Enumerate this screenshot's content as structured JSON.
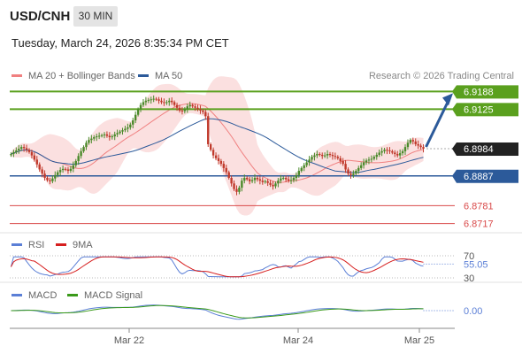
{
  "header": {
    "symbol": "USD/CNH",
    "timeframe": "30 MIN",
    "datetime": "Tuesday, March 24, 2026 8:35:34 PM CET"
  },
  "legend_main": [
    {
      "label": "MA 20 + Bollinger Bands",
      "color": "#f08080"
    },
    {
      "label": "MA 50",
      "color": "#2c5a9a"
    }
  ],
  "credit": "Research © 2026 Trading Central",
  "legend_rsi": [
    {
      "label": "RSI",
      "color": "#5b7fd6"
    },
    {
      "label": "9MA",
      "color": "#d61f1f"
    }
  ],
  "legend_macd": [
    {
      "label": "MACD",
      "color": "#5b7fd6"
    },
    {
      "label": "MACD Signal",
      "color": "#3a9a1a"
    }
  ],
  "colors": {
    "up_candle": "#4a8a2a",
    "down_candle": "#c0392b",
    "resistance": "#5aa01e",
    "support": "#2c5a9a",
    "weak_support": "#d94a4a",
    "band_fill": "#fbe0e0",
    "arrow": "#2c5a9a"
  },
  "chart_data": [
    {
      "type": "candlestick",
      "title": "USD/CNH 30 MIN",
      "x_ticks": [
        "Mar 22",
        "Mar 24",
        "Mar 25"
      ],
      "ylim": [
        6.87,
        6.9205
      ],
      "last_price": 6.8984,
      "levels": [
        {
          "value": 6.9188,
          "label": "6.9188",
          "kind": "resistance"
        },
        {
          "value": 6.9125,
          "label": "6.9125",
          "kind": "resistance"
        },
        {
          "value": 6.8887,
          "label": "6.8887",
          "kind": "support"
        },
        {
          "value": 6.8781,
          "label": "6.8781",
          "kind": "weak_support"
        },
        {
          "value": 6.8717,
          "label": "6.8717",
          "kind": "weak_support"
        }
      ],
      "last_label": "6.8984",
      "close": [
        6.8965,
        6.8972,
        6.8978,
        6.8984,
        6.899,
        6.8986,
        6.898,
        6.8972,
        6.896,
        6.8945,
        6.8928,
        6.891,
        6.8895,
        6.888,
        6.8872,
        6.8868,
        6.8878,
        6.889,
        6.89,
        6.8908,
        6.8912,
        6.891,
        6.8905,
        6.8912,
        6.8925,
        6.894,
        6.8958,
        6.8975,
        6.899,
        6.9005,
        6.9015,
        6.902,
        6.9025,
        6.9028,
        6.903,
        6.9032,
        6.9035,
        6.903,
        6.9025,
        6.9028,
        6.9035,
        6.904,
        6.9045,
        6.905,
        6.9055,
        6.906,
        6.907,
        6.9085,
        6.9105,
        6.9125,
        6.914,
        6.915,
        6.9155,
        6.9158,
        6.916,
        6.9162,
        6.916,
        6.9155,
        6.915,
        6.9148,
        6.915,
        6.9155,
        6.915,
        6.914,
        6.913,
        6.912,
        6.9118,
        6.9125,
        6.9135,
        6.914,
        6.9135,
        6.913,
        6.9125,
        6.912,
        6.9115,
        6.91,
        6.9,
        6.898,
        6.896,
        6.895,
        6.894,
        6.893,
        6.8915,
        6.89,
        6.888,
        6.886,
        6.884,
        6.883,
        6.8845,
        6.887,
        6.888,
        6.8875,
        6.8868,
        6.8872,
        6.888,
        6.8875,
        6.887,
        6.8865,
        6.8868,
        6.8862,
        6.8855,
        6.885,
        6.886,
        6.887,
        6.8878,
        6.888,
        6.8875,
        6.887,
        6.8872,
        6.888,
        6.889,
        6.8905,
        6.8915,
        6.8925,
        6.8935,
        6.8945,
        6.8955,
        6.896,
        6.8965,
        6.8962,
        6.8958,
        6.896,
        6.8965,
        6.8962,
        6.8958,
        6.8955,
        6.895,
        6.894,
        6.893,
        6.891,
        6.8895,
        6.889,
        6.8895,
        6.8905,
        6.8915,
        6.8925,
        6.8935,
        6.8942,
        6.8945,
        6.8948,
        6.8955,
        6.8962,
        6.897,
        6.8975,
        6.898,
        6.8978,
        6.8975,
        6.897,
        6.8965,
        6.896,
        6.8968,
        6.8975,
        6.899,
        6.9005,
        6.9015,
        6.901,
        6.9,
        6.8995,
        6.899,
        6.8984
      ],
      "open_offset_note": "",
      "rsi": {
        "ticks": [
          "70",
          "30"
        ],
        "last": "55.05"
      },
      "macd": {
        "last": "0.00"
      }
    }
  ]
}
